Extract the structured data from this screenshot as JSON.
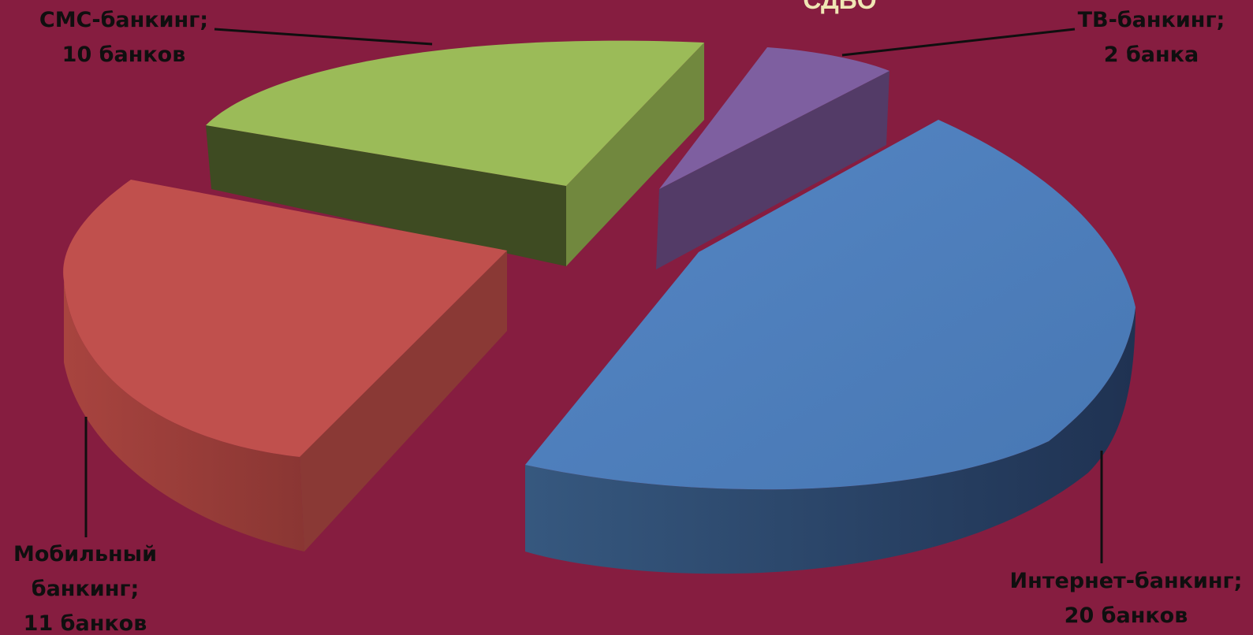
{
  "chart_data": {
    "type": "pie",
    "style": "3d-exploded",
    "title": "СДБО",
    "categories": [
      "Интернет-банкинг",
      "ТВ-банкинг",
      "СМС-банкинг",
      "Мобильный банкинг"
    ],
    "values": [
      20,
      2,
      10,
      11
    ],
    "unit_label": "банков",
    "colors": {
      "Интернет-банкинг": "#4b7ab8",
      "ТВ-банкинг": "#7e5fa0",
      "СМС-банкинг": "#9bbb58",
      "Мобильный банкинг": "#c0504d"
    },
    "data_labels": [
      {
        "category_line": "СМС-банкинг;",
        "value_line": "10 банков"
      },
      {
        "category_line": "ТВ-банкинг;",
        "value_line": "2 банка"
      },
      {
        "category_line_1": "Мобильный",
        "category_line_2": "банкинг;",
        "value_line": "11 банков"
      },
      {
        "category_line": "Интернет-банкинг;",
        "value_line": "20 банков"
      }
    ],
    "legend": "none",
    "background_color": "#861d40"
  }
}
